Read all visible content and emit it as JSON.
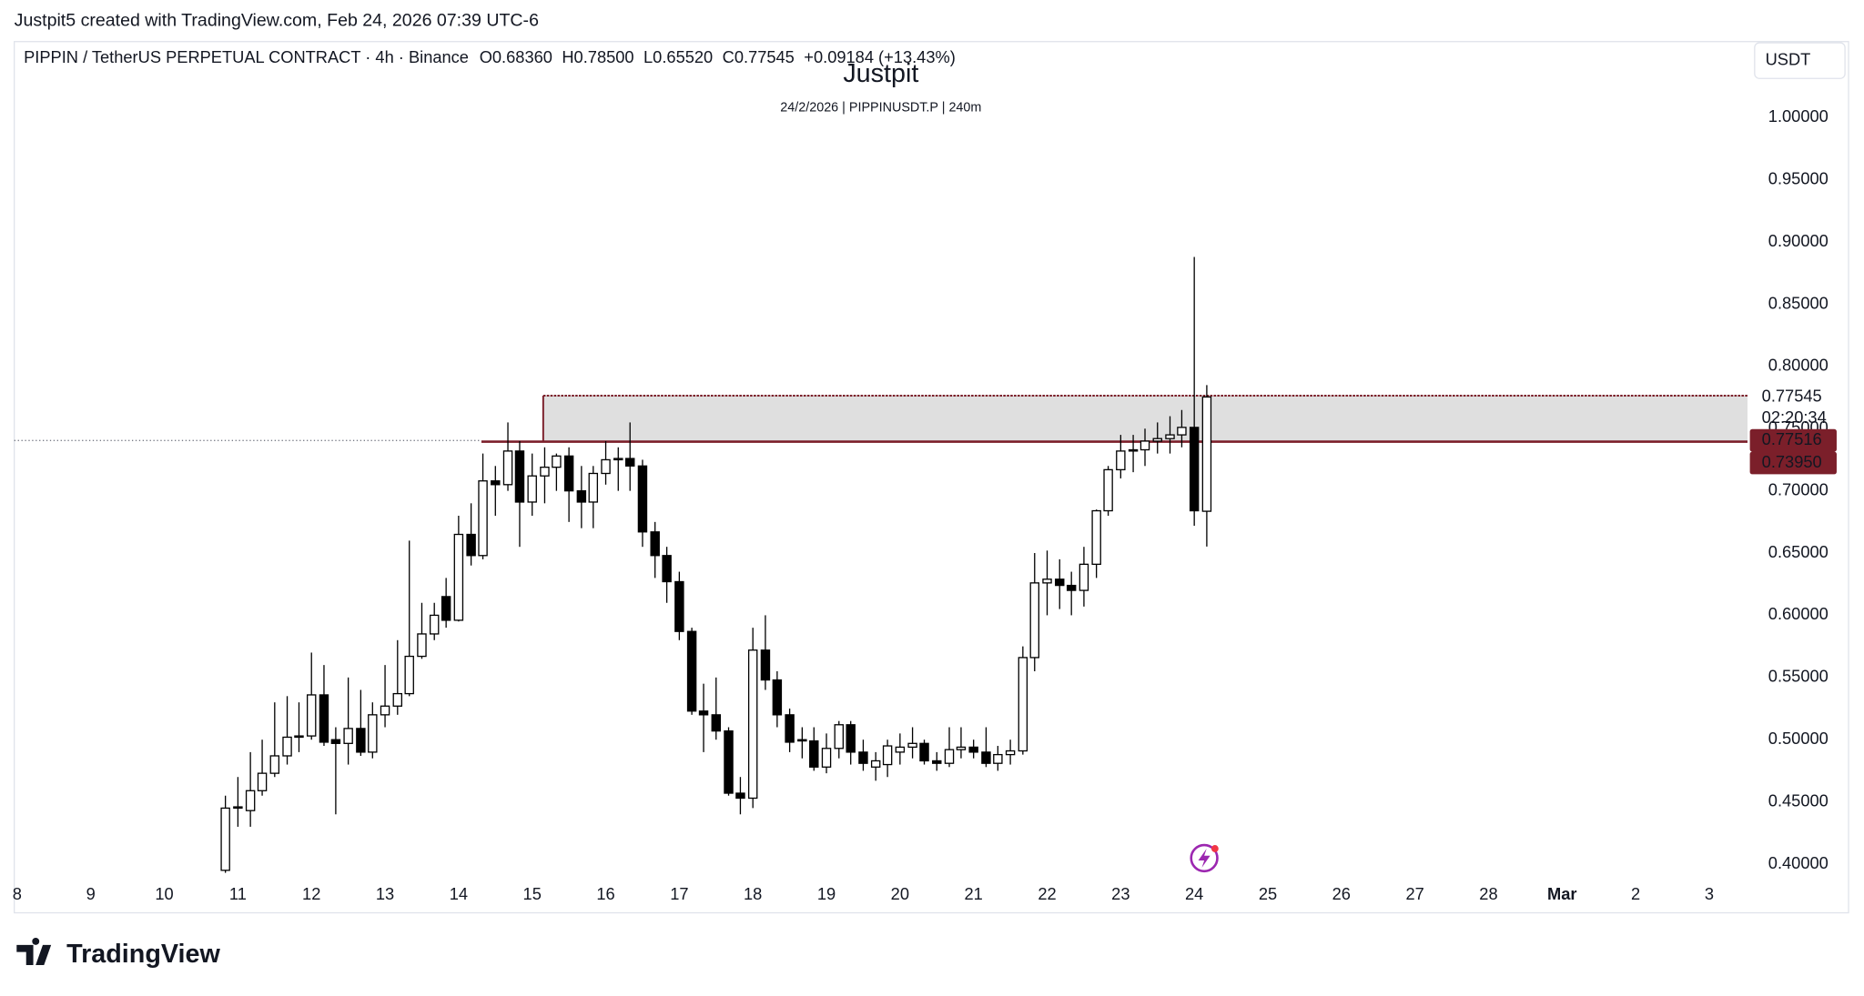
{
  "watermark": "Justpit5 created with TradingView.com, Feb 24, 2026 07:39 UTC-6",
  "brand": "TradingView",
  "chart_data": {
    "type": "candlestick",
    "title": "Justpit",
    "subtitle": "24/2/2026 | PIPPINUSDT.P | 240m",
    "legend": {
      "symbol": "PIPPIN / TetherUS PERPETUAL CONTRACT · 4h · Binance",
      "ohlc": [
        "O0.68360",
        "H0.78500",
        "L0.65520",
        "C0.77545",
        "+0.09184 (+13.43%)"
      ]
    },
    "currency": "USDT",
    "countdown": "02:20:34",
    "up_color": "#ffffff",
    "down_color": "#000000",
    "wick_color": "#000000",
    "x": [
      10.83,
      11,
      11.17,
      11.33,
      11.5,
      11.67,
      11.83,
      12,
      12.17,
      12.33,
      12.5,
      12.67,
      12.83,
      13,
      13.17,
      13.33,
      13.5,
      13.67,
      13.83,
      14,
      14.17,
      14.33,
      14.5,
      14.67,
      14.83,
      15,
      15.17,
      15.33,
      15.5,
      15.67,
      15.83,
      16,
      16.17,
      16.33,
      16.5,
      16.67,
      16.83,
      17,
      17.17,
      17.33,
      17.5,
      17.67,
      17.83,
      18,
      18.17,
      18.33,
      18.5,
      18.67,
      18.83,
      19,
      19.17,
      19.33,
      19.5,
      19.67,
      19.83,
      20,
      20.17,
      20.33,
      20.5,
      20.67,
      20.83,
      21,
      21.17,
      21.33,
      21.5,
      21.67,
      21.83,
      22,
      22.17,
      22.33,
      22.5,
      22.67,
      22.83,
      23,
      23.17,
      23.33,
      23.5,
      23.67,
      23.83,
      24,
      24.17
    ],
    "open": [
      0.395,
      0.445,
      0.443,
      0.459,
      0.473,
      0.487,
      0.502,
      0.503,
      0.536,
      0.5,
      0.497,
      0.509,
      0.49,
      0.52,
      0.527,
      0.537,
      0.567,
      0.585,
      0.615,
      0.596,
      0.665,
      0.648,
      0.708,
      0.705,
      0.732,
      0.691,
      0.712,
      0.719,
      0.728,
      0.7,
      0.691,
      0.714,
      0.725,
      0.726,
      0.72,
      0.667,
      0.648,
      0.627,
      0.587,
      0.523,
      0.52,
      0.507,
      0.457,
      0.453,
      0.572,
      0.548,
      0.52,
      0.5,
      0.499,
      0.478,
      0.493,
      0.512,
      0.49,
      0.478,
      0.48,
      0.49,
      0.494,
      0.497,
      0.483,
      0.481,
      0.492,
      0.494,
      0.49,
      0.481,
      0.488,
      0.491,
      0.566,
      0.626,
      0.629,
      0.624,
      0.62,
      0.641,
      0.684,
      0.717,
      0.732,
      0.733,
      0.74,
      0.742,
      0.745,
      0.751,
      0.6836
    ],
    "high": [
      0.455,
      0.47,
      0.49,
      0.5,
      0.53,
      0.535,
      0.53,
      0.57,
      0.56,
      0.51,
      0.55,
      0.54,
      0.53,
      0.56,
      0.58,
      0.66,
      0.61,
      0.61,
      0.63,
      0.68,
      0.69,
      0.73,
      0.72,
      0.755,
      0.74,
      0.73,
      0.735,
      0.73,
      0.735,
      0.72,
      0.72,
      0.74,
      0.735,
      0.755,
      0.725,
      0.675,
      0.655,
      0.635,
      0.59,
      0.545,
      0.55,
      0.51,
      0.47,
      0.59,
      0.6,
      0.555,
      0.525,
      0.51,
      0.51,
      0.505,
      0.515,
      0.515,
      0.5,
      0.49,
      0.5,
      0.505,
      0.51,
      0.5,
      0.49,
      0.51,
      0.51,
      0.5,
      0.51,
      0.495,
      0.5,
      0.575,
      0.65,
      0.652,
      0.645,
      0.635,
      0.655,
      0.685,
      0.72,
      0.745,
      0.745,
      0.75,
      0.755,
      0.76,
      0.765,
      0.888,
      0.785
    ],
    "low": [
      0.393,
      0.43,
      0.43,
      0.455,
      0.47,
      0.48,
      0.49,
      0.5,
      0.495,
      0.44,
      0.48,
      0.487,
      0.485,
      0.51,
      0.52,
      0.535,
      0.565,
      0.58,
      0.59,
      0.595,
      0.64,
      0.645,
      0.68,
      0.7,
      0.655,
      0.68,
      0.69,
      0.7,
      0.675,
      0.67,
      0.67,
      0.705,
      0.7,
      0.7,
      0.655,
      0.63,
      0.61,
      0.58,
      0.52,
      0.49,
      0.5,
      0.455,
      0.44,
      0.445,
      0.54,
      0.51,
      0.49,
      0.485,
      0.475,
      0.473,
      0.485,
      0.48,
      0.475,
      0.467,
      0.47,
      0.48,
      0.485,
      0.48,
      0.475,
      0.478,
      0.485,
      0.485,
      0.478,
      0.475,
      0.48,
      0.488,
      0.555,
      0.6,
      0.605,
      0.6,
      0.607,
      0.63,
      0.68,
      0.71,
      0.715,
      0.72,
      0.73,
      0.73,
      0.735,
      0.672,
      0.6552
    ],
    "close": [
      0.445,
      0.446,
      0.459,
      0.473,
      0.487,
      0.502,
      0.503,
      0.536,
      0.498,
      0.497,
      0.509,
      0.49,
      0.52,
      0.527,
      0.537,
      0.567,
      0.585,
      0.6,
      0.596,
      0.665,
      0.648,
      0.708,
      0.705,
      0.732,
      0.691,
      0.712,
      0.719,
      0.728,
      0.7,
      0.691,
      0.714,
      0.725,
      0.726,
      0.72,
      0.667,
      0.648,
      0.627,
      0.587,
      0.523,
      0.52,
      0.507,
      0.457,
      0.453,
      0.572,
      0.548,
      0.52,
      0.498,
      0.499,
      0.478,
      0.493,
      0.512,
      0.49,
      0.481,
      0.483,
      0.495,
      0.494,
      0.497,
      0.483,
      0.481,
      0.492,
      0.494,
      0.49,
      0.481,
      0.488,
      0.491,
      0.566,
      0.626,
      0.629,
      0.624,
      0.62,
      0.641,
      0.684,
      0.717,
      0.732,
      0.733,
      0.74,
      0.742,
      0.745,
      0.751,
      0.684,
      0.77545
    ],
    "zone": {
      "top": 0.7765,
      "bottom": 0.7395,
      "x_start": 15.15,
      "line_start": 14.31,
      "color": "#dcdcdc",
      "line_color": "#7b1f2a"
    },
    "price_labels": [
      {
        "value": 0.77545,
        "label": "0.77545"
      },
      {
        "value": 0.77516,
        "label": "0.77516"
      },
      {
        "value": 0.7395,
        "label": "0.73950"
      }
    ],
    "xlim": [
      7.96,
      31.52
    ],
    "ylim": [
      0.3876,
      1.0611
    ],
    "xticks": [
      8,
      9,
      10,
      11,
      12,
      13,
      14,
      15,
      16,
      17,
      18,
      19,
      20,
      21,
      22,
      23,
      24,
      25,
      26,
      27,
      28,
      {
        "value": 29,
        "label": "Mar"
      },
      {
        "value": 30,
        "label": "2"
      },
      {
        "value": 31,
        "label": "3"
      }
    ],
    "yticks": [
      {
        "value": 0.4,
        "label": "0.40000"
      },
      {
        "value": 0.45,
        "label": "0.45000"
      },
      {
        "value": 0.5,
        "label": "0.50000"
      },
      {
        "value": 0.55,
        "label": "0.55000"
      },
      {
        "value": 0.6,
        "label": "0.60000"
      },
      {
        "value": 0.65,
        "label": "0.65000"
      },
      {
        "value": 0.7,
        "label": "0.70000"
      },
      {
        "value": 0.75,
        "label": "0.75000"
      },
      {
        "value": 0.8,
        "label": "0.80000"
      },
      {
        "value": 0.85,
        "label": "0.85000"
      },
      {
        "value": 0.9,
        "label": "0.90000"
      },
      {
        "value": 0.95,
        "label": "0.95000"
      },
      {
        "value": 1.0,
        "label": "1.00000"
      }
    ]
  }
}
